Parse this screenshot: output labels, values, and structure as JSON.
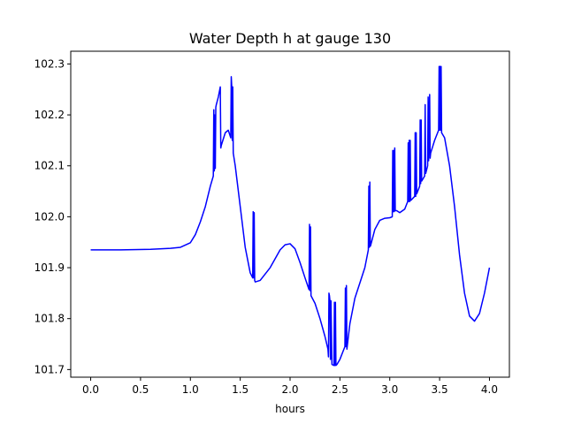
{
  "chart_data": {
    "type": "line",
    "title": "Water Depth h at gauge 130",
    "xlabel": "hours",
    "ylabel": "",
    "xlim": [
      -0.2,
      4.2
    ],
    "ylim": [
      101.685,
      102.325
    ],
    "xticks": [
      0.0,
      0.5,
      1.0,
      1.5,
      2.0,
      2.5,
      3.0,
      3.5,
      4.0
    ],
    "xtick_labels": [
      "0.0",
      "0.5",
      "1.0",
      "1.5",
      "2.0",
      "2.5",
      "3.0",
      "3.5",
      "4.0"
    ],
    "yticks": [
      101.7,
      101.8,
      101.9,
      102.0,
      102.1,
      102.2,
      102.3
    ],
    "ytick_labels": [
      "101.7",
      "101.8",
      "101.9",
      "102.0",
      "102.1",
      "102.2",
      "102.3"
    ],
    "grid": false,
    "series": [
      {
        "color": "#0000ff",
        "x": [
          0.0,
          0.3,
          0.6,
          0.8,
          0.9,
          1.0,
          1.05,
          1.1,
          1.15,
          1.2,
          1.23,
          1.235,
          1.24,
          1.245,
          1.25,
          1.255,
          1.26,
          1.28,
          1.3,
          1.305,
          1.31,
          1.35,
          1.38,
          1.405,
          1.41,
          1.415,
          1.42,
          1.425,
          1.43,
          1.45,
          1.5,
          1.55,
          1.6,
          1.625,
          1.63,
          1.635,
          1.64,
          1.645,
          1.65,
          1.7,
          1.8,
          1.9,
          1.95,
          2.0,
          2.05,
          2.1,
          2.15,
          2.19,
          2.195,
          2.2,
          2.205,
          2.21,
          2.25,
          2.3,
          2.35,
          2.38,
          2.385,
          2.39,
          2.395,
          2.4,
          2.405,
          2.41,
          2.42,
          2.44,
          2.445,
          2.45,
          2.455,
          2.46,
          2.47,
          2.5,
          2.55,
          2.555,
          2.56,
          2.565,
          2.57,
          2.6,
          2.65,
          2.7,
          2.75,
          2.785,
          2.79,
          2.795,
          2.8,
          2.805,
          2.81,
          2.85,
          2.9,
          2.95,
          3.0,
          3.025,
          3.03,
          3.035,
          3.04,
          3.045,
          3.05,
          3.055,
          3.06,
          3.065,
          3.07,
          3.1,
          3.15,
          3.18,
          3.185,
          3.19,
          3.195,
          3.2,
          3.205,
          3.21,
          3.25,
          3.255,
          3.26,
          3.265,
          3.27,
          3.3,
          3.305,
          3.31,
          3.315,
          3.32,
          3.35,
          3.355,
          3.36,
          3.38,
          3.385,
          3.39,
          3.4,
          3.405,
          3.41,
          3.45,
          3.49,
          3.495,
          3.5,
          3.505,
          3.51,
          3.515,
          3.52,
          3.55,
          3.6,
          3.65,
          3.7,
          3.75,
          3.8,
          3.85,
          3.9,
          3.95,
          4.0
        ],
        "y": [
          101.935,
          101.935,
          101.936,
          101.938,
          101.94,
          101.949,
          101.965,
          101.99,
          102.02,
          102.06,
          102.08,
          102.21,
          102.09,
          102.2,
          102.095,
          102.215,
          102.22,
          102.235,
          102.255,
          102.135,
          102.14,
          102.165,
          102.17,
          102.155,
          102.275,
          102.255,
          102.15,
          102.255,
          102.125,
          102.1,
          102.02,
          101.94,
          101.89,
          101.88,
          102.01,
          101.88,
          102.008,
          101.875,
          101.872,
          101.875,
          101.9,
          101.935,
          101.945,
          101.947,
          101.937,
          101.91,
          101.88,
          101.857,
          101.985,
          101.855,
          101.98,
          101.845,
          101.83,
          101.8,
          101.765,
          101.74,
          101.725,
          101.85,
          101.845,
          101.835,
          101.72,
          101.835,
          101.71,
          101.708,
          101.832,
          101.708,
          101.832,
          101.708,
          101.71,
          101.72,
          101.745,
          101.86,
          101.745,
          101.865,
          101.74,
          101.79,
          101.84,
          101.87,
          101.9,
          101.935,
          102.06,
          101.94,
          102.068,
          101.942,
          101.945,
          101.975,
          101.993,
          101.997,
          101.998,
          102.0,
          102.13,
          102.01,
          102.13,
          102.01,
          102.135,
          102.012,
          102.012,
          102.012,
          102.012,
          102.008,
          102.015,
          102.03,
          102.145,
          102.03,
          102.15,
          102.03,
          102.15,
          102.032,
          102.04,
          102.165,
          102.04,
          102.165,
          102.045,
          102.06,
          102.19,
          102.065,
          102.19,
          102.07,
          102.08,
          102.22,
          102.085,
          102.1,
          102.235,
          102.11,
          102.24,
          102.115,
          102.125,
          102.15,
          102.17,
          102.295,
          102.17,
          102.295,
          102.17,
          102.295,
          102.165,
          102.155,
          102.1,
          102.02,
          101.925,
          101.85,
          101.805,
          101.795,
          101.81,
          101.85,
          101.9
        ]
      }
    ]
  }
}
